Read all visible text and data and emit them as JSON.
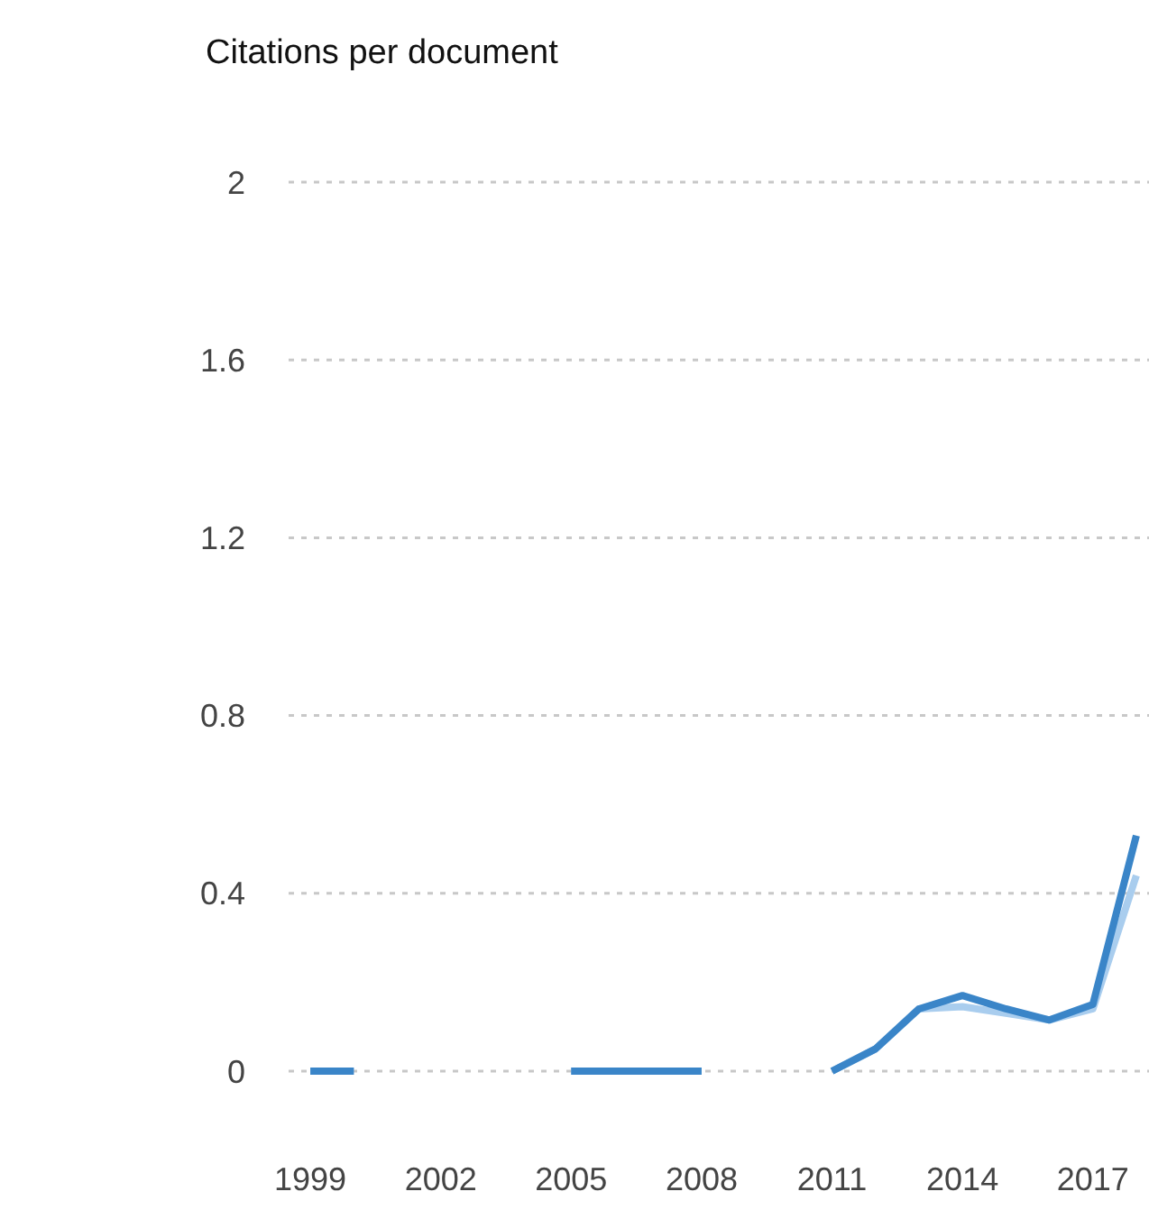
{
  "chart_data": {
    "type": "line",
    "title": "Citations per document",
    "x": [
      1999,
      2000,
      2005,
      2006,
      2007,
      2008,
      2011,
      2012,
      2013,
      2014,
      2015,
      2016,
      2017,
      2018
    ],
    "series": [
      {
        "color": "#a9cdee",
        "values": [
          0,
          0,
          0,
          0,
          0,
          0,
          0,
          0.05,
          0.14,
          0.145,
          0.13,
          0.115,
          0.14,
          0.44
        ]
      },
      {
        "color": "#3a85c8",
        "values": [
          0,
          0,
          0,
          0,
          0,
          0,
          0,
          0.05,
          0.14,
          0.17,
          0.14,
          0.115,
          0.15,
          0.53
        ]
      }
    ],
    "xlim": [
      1998.5,
      2018.25
    ],
    "xticks": [
      1999,
      2002,
      2005,
      2008,
      2011,
      2014,
      2017
    ],
    "ylim": [
      0,
      2
    ],
    "yticks": [
      0,
      0.4,
      0.8,
      1.2,
      1.6,
      2
    ],
    "grid": "y",
    "marker": "none",
    "line_style": "solid"
  }
}
